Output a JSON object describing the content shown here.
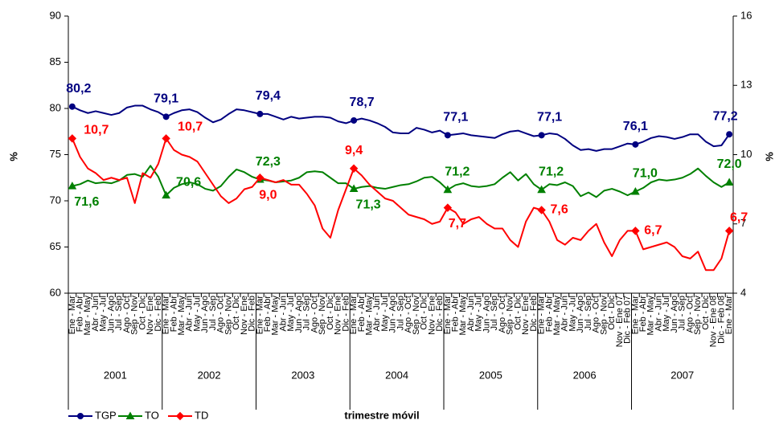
{
  "chart_data": {
    "type": "line",
    "xlabel": "trimestre móvil",
    "ylabel": "%",
    "y2label": "%",
    "ylim": [
      60,
      90
    ],
    "yticks": [
      60,
      65,
      70,
      75,
      80,
      85,
      90
    ],
    "y2lim": [
      4,
      16
    ],
    "y2ticks": [
      4,
      7,
      10,
      13,
      16
    ],
    "legend": "bottom-left",
    "categories": [
      "Ene - Mar",
      "Feb - Abr",
      "Mar - May",
      "Abr - Jun",
      "May - Jul",
      "Jun - Ago",
      "Jul - Sep",
      "Ago - Oct",
      "Sep - Nov",
      "Oct - Dic",
      "Nov - Ene",
      "Dic - Feb",
      "Ene - Mar",
      "Feb - Abr",
      "Mar - May",
      "Abr - Jun",
      "May - Jul",
      "Jun - Ago",
      "Jul - Sep",
      "Ago - Oct",
      "Sep - Nov",
      "Oct - Dic",
      "Nov - Ene",
      "Dic - Feb",
      "Ene - Mar",
      "Feb - Abr",
      "Mar - May",
      "Abr - Jun",
      "May - Jul",
      "Jun - Ago",
      "Jul - Sep",
      "Ago - Oct",
      "Sep - Nov",
      "Oct - Dic",
      "Nov - Ene",
      "Dic - Feb",
      "Ene - Mar",
      "Feb - Abr",
      "Mar - May",
      "Abr - Jun",
      "May - Jul",
      "Jun - Ago",
      "Jul - Sep",
      "Ago - Oct",
      "Sep - Nov",
      "Oct - Dic",
      "Nov - Ene",
      "Dic - Feb",
      "Ene - Mar",
      "Feb - Abr",
      "Mar - May",
      "Abr - Jun",
      "May - Jul",
      "Jun - Ago",
      "Jul - Sep",
      "Ago - Oct",
      "Sep - Nov",
      "Oct - Dic",
      "Nov - Ene",
      "Dic - Feb",
      "Ene - Mar",
      "Feb - Abr",
      "Mar - May",
      "Abr - Jun",
      "May - Jul",
      "Jun - Ago",
      "Jul - Sep",
      "Ago - Oct",
      "Sep - Nov",
      "Oct - Dic",
      "Nov - Ene 07",
      "Dic - Feb 07",
      "Ene - Mar",
      "Feb - Abr",
      "Mar - May",
      "Abr - Jun",
      "May - Jul",
      "Jun - Ago",
      "Jul - Sep",
      "Ago - Oct",
      "Sep - Nov",
      "Oct - Dic",
      "Nov - Ene 08",
      "Dic - Feb 08",
      "Ene - Mar"
    ],
    "groups": [
      {
        "label": "2001",
        "size": 12
      },
      {
        "label": "2002",
        "size": 12
      },
      {
        "label": "2003",
        "size": 12
      },
      {
        "label": "2004",
        "size": 12
      },
      {
        "label": "2005",
        "size": 12
      },
      {
        "label": "2006",
        "size": 12
      },
      {
        "label": "2007",
        "size": 13
      }
    ],
    "series": [
      {
        "name": "TGP",
        "color": "#000080",
        "marker": "circle",
        "values": [
          80.2,
          79.8,
          79.5,
          79.7,
          79.5,
          79.3,
          79.5,
          80.1,
          80.3,
          80.3,
          79.9,
          79.6,
          79.1,
          79.5,
          79.8,
          79.9,
          79.6,
          79.0,
          78.5,
          78.8,
          79.4,
          79.9,
          79.8,
          79.6,
          79.4,
          79.4,
          79.1,
          78.8,
          79.1,
          78.9,
          79.0,
          79.1,
          79.1,
          79.0,
          78.6,
          78.4,
          78.7,
          78.9,
          78.7,
          78.4,
          78.0,
          77.4,
          77.3,
          77.3,
          77.9,
          77.7,
          77.4,
          77.6,
          77.1,
          77.2,
          77.3,
          77.1,
          77.0,
          76.9,
          76.8,
          77.2,
          77.5,
          77.6,
          77.3,
          77.0,
          77.1,
          77.3,
          77.2,
          76.7,
          76.0,
          75.5,
          75.6,
          75.4,
          75.6,
          75.6,
          75.9,
          76.2,
          76.1,
          76.4,
          76.8,
          77.0,
          76.9,
          76.7,
          76.9,
          77.2,
          77.2,
          76.4,
          75.9,
          76.0,
          77.2
        ],
        "value_labels": [
          "80,2",
          null,
          null,
          null,
          null,
          null,
          null,
          null,
          null,
          null,
          null,
          null,
          "79,1",
          null,
          null,
          null,
          null,
          null,
          null,
          null,
          null,
          null,
          null,
          null,
          "79,4",
          null,
          null,
          null,
          null,
          null,
          null,
          null,
          null,
          null,
          null,
          null,
          "78,7",
          null,
          null,
          null,
          null,
          null,
          null,
          null,
          null,
          null,
          null,
          null,
          "77,1",
          null,
          null,
          null,
          null,
          null,
          null,
          null,
          null,
          null,
          null,
          null,
          "77,1",
          null,
          null,
          null,
          null,
          null,
          null,
          null,
          null,
          null,
          null,
          null,
          "76,1",
          null,
          null,
          null,
          null,
          null,
          null,
          null,
          null,
          null,
          null,
          null,
          "77,2"
        ]
      },
      {
        "name": "TO",
        "color": "#008000",
        "marker": "triangle",
        "values": [
          71.6,
          71.8,
          72.2,
          71.9,
          72.0,
          71.9,
          72.2,
          72.8,
          72.9,
          72.6,
          73.8,
          72.6,
          70.6,
          71.4,
          71.8,
          72.0,
          71.8,
          71.3,
          71.1,
          71.6,
          72.6,
          73.4,
          73.1,
          72.6,
          72.3,
          72.2,
          72.0,
          72.1,
          72.2,
          72.5,
          73.1,
          73.2,
          73.1,
          72.5,
          71.9,
          71.9,
          71.3,
          71.5,
          71.6,
          71.4,
          71.3,
          71.5,
          71.7,
          71.8,
          72.1,
          72.5,
          72.6,
          72.0,
          71.2,
          71.7,
          71.9,
          71.6,
          71.5,
          71.6,
          71.8,
          72.5,
          73.1,
          72.2,
          72.9,
          71.8,
          71.2,
          71.8,
          71.7,
          72.0,
          71.6,
          70.5,
          70.9,
          70.4,
          71.1,
          71.3,
          71.0,
          70.6,
          71.0,
          71.4,
          72.0,
          72.3,
          72.2,
          72.3,
          72.5,
          72.9,
          73.5,
          72.7,
          72.0,
          71.5,
          72.0
        ],
        "value_labels": [
          "71,6",
          null,
          null,
          null,
          null,
          null,
          null,
          null,
          null,
          null,
          null,
          null,
          "70,6",
          null,
          null,
          null,
          null,
          null,
          null,
          null,
          null,
          null,
          null,
          null,
          "72,3",
          null,
          null,
          null,
          null,
          null,
          null,
          null,
          null,
          null,
          null,
          null,
          "71,3",
          null,
          null,
          null,
          null,
          null,
          null,
          null,
          null,
          null,
          null,
          null,
          "71,2",
          null,
          null,
          null,
          null,
          null,
          null,
          null,
          null,
          null,
          null,
          null,
          "71,2",
          null,
          null,
          null,
          null,
          null,
          null,
          null,
          null,
          null,
          null,
          null,
          "71,0",
          null,
          null,
          null,
          null,
          null,
          null,
          null,
          null,
          null,
          null,
          null,
          "72,0"
        ]
      },
      {
        "name": "TD",
        "color": "#ff0000",
        "marker": "diamond",
        "axis": "y2",
        "values": [
          10.7,
          9.9,
          9.4,
          9.2,
          8.9,
          9.0,
          8.9,
          9.0,
          7.9,
          9.2,
          9.0,
          9.6,
          10.7,
          10.2,
          10.0,
          9.9,
          9.7,
          9.2,
          8.7,
          8.2,
          7.9,
          8.1,
          8.5,
          8.6,
          9.0,
          8.9,
          8.8,
          8.9,
          8.7,
          8.7,
          8.3,
          7.8,
          6.8,
          6.4,
          7.6,
          8.5,
          9.4,
          9.1,
          8.7,
          8.4,
          8.1,
          8.0,
          7.7,
          7.4,
          7.3,
          7.2,
          7.0,
          7.1,
          7.7,
          7.5,
          7.0,
          7.2,
          7.3,
          7.0,
          6.8,
          6.8,
          6.3,
          6.0,
          7.1,
          7.7,
          7.6,
          7.1,
          6.3,
          6.1,
          6.4,
          6.3,
          6.7,
          7.0,
          6.2,
          5.6,
          6.3,
          6.7,
          6.7,
          5.9,
          6.0,
          6.1,
          6.2,
          6.0,
          5.6,
          5.5,
          5.8,
          5.0,
          5.0,
          5.5,
          6.7
        ],
        "value_labels": [
          "10,7",
          null,
          null,
          null,
          null,
          null,
          null,
          null,
          null,
          null,
          null,
          null,
          "10,7",
          null,
          null,
          null,
          null,
          null,
          null,
          null,
          null,
          null,
          null,
          null,
          "9,0",
          null,
          null,
          null,
          null,
          null,
          null,
          null,
          null,
          null,
          null,
          null,
          "9,4",
          null,
          null,
          null,
          null,
          null,
          null,
          null,
          null,
          null,
          null,
          null,
          "7,7",
          null,
          null,
          null,
          null,
          null,
          null,
          null,
          null,
          null,
          null,
          null,
          "7,6",
          null,
          null,
          null,
          null,
          null,
          null,
          null,
          null,
          null,
          null,
          null,
          "6,7",
          null,
          null,
          null,
          null,
          null,
          null,
          null,
          null,
          null,
          null,
          null,
          "6,7"
        ]
      }
    ]
  }
}
